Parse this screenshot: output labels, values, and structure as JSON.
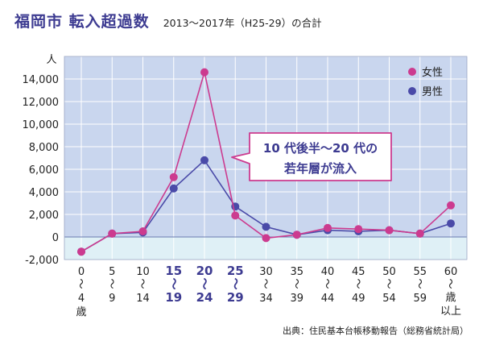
{
  "header": {
    "title": "福岡市 転入超過数",
    "subtitle": "2013〜2017年（H25-29）の合計"
  },
  "footer": {
    "source": "出典：住民基本台帳移動報告（総務省統計局）"
  },
  "annotation": {
    "line1": "10 代後半〜20 代の",
    "line2": "若年層が流入"
  },
  "colors": {
    "female": "#cc3b8f",
    "male": "#4a4aa8",
    "plot_bg_positive": "#c9d6ee",
    "plot_bg_negative": "#dff0f6",
    "highlight_label": "#3d3b91",
    "callout_border": "#cc3b8f"
  },
  "chart_data": {
    "type": "line",
    "ylabel": "人",
    "ylim": [
      -2000,
      16000
    ],
    "yticks": [
      -2000,
      0,
      2000,
      4000,
      6000,
      8000,
      10000,
      12000,
      14000
    ],
    "ytick_labels": [
      "-2,000",
      "0",
      "2,000",
      "4,000",
      "6,000",
      "8,000",
      "10,000",
      "12,000",
      "14,000"
    ],
    "grid": true,
    "legend_position": "top-right",
    "categories": [
      {
        "top": "0",
        "bottom": "4",
        "suffix": "歳",
        "highlight": false
      },
      {
        "top": "5",
        "bottom": "9",
        "suffix": "",
        "highlight": false
      },
      {
        "top": "10",
        "bottom": "14",
        "suffix": "",
        "highlight": false
      },
      {
        "top": "15",
        "bottom": "19",
        "suffix": "",
        "highlight": true
      },
      {
        "top": "20",
        "bottom": "24",
        "suffix": "",
        "highlight": true
      },
      {
        "top": "25",
        "bottom": "29",
        "suffix": "",
        "highlight": true
      },
      {
        "top": "30",
        "bottom": "34",
        "suffix": "",
        "highlight": false
      },
      {
        "top": "35",
        "bottom": "39",
        "suffix": "",
        "highlight": false
      },
      {
        "top": "40",
        "bottom": "44",
        "suffix": "",
        "highlight": false
      },
      {
        "top": "45",
        "bottom": "49",
        "suffix": "",
        "highlight": false
      },
      {
        "top": "50",
        "bottom": "54",
        "suffix": "",
        "highlight": false
      },
      {
        "top": "55",
        "bottom": "59",
        "suffix": "",
        "highlight": false
      },
      {
        "top": "60",
        "bottom": "以上",
        "suffix": "",
        "mid": "歳",
        "highlight": false
      }
    ],
    "series": [
      {
        "name": "女性",
        "color": "#cc3b8f",
        "values": [
          -1300,
          300,
          500,
          5300,
          14600,
          1900,
          -100,
          200,
          800,
          700,
          600,
          300,
          2800
        ]
      },
      {
        "name": "男性",
        "color": "#4a4aa8",
        "values": [
          -1300,
          300,
          400,
          4300,
          6800,
          2700,
          900,
          200,
          600,
          500,
          600,
          300,
          1200
        ]
      }
    ]
  }
}
